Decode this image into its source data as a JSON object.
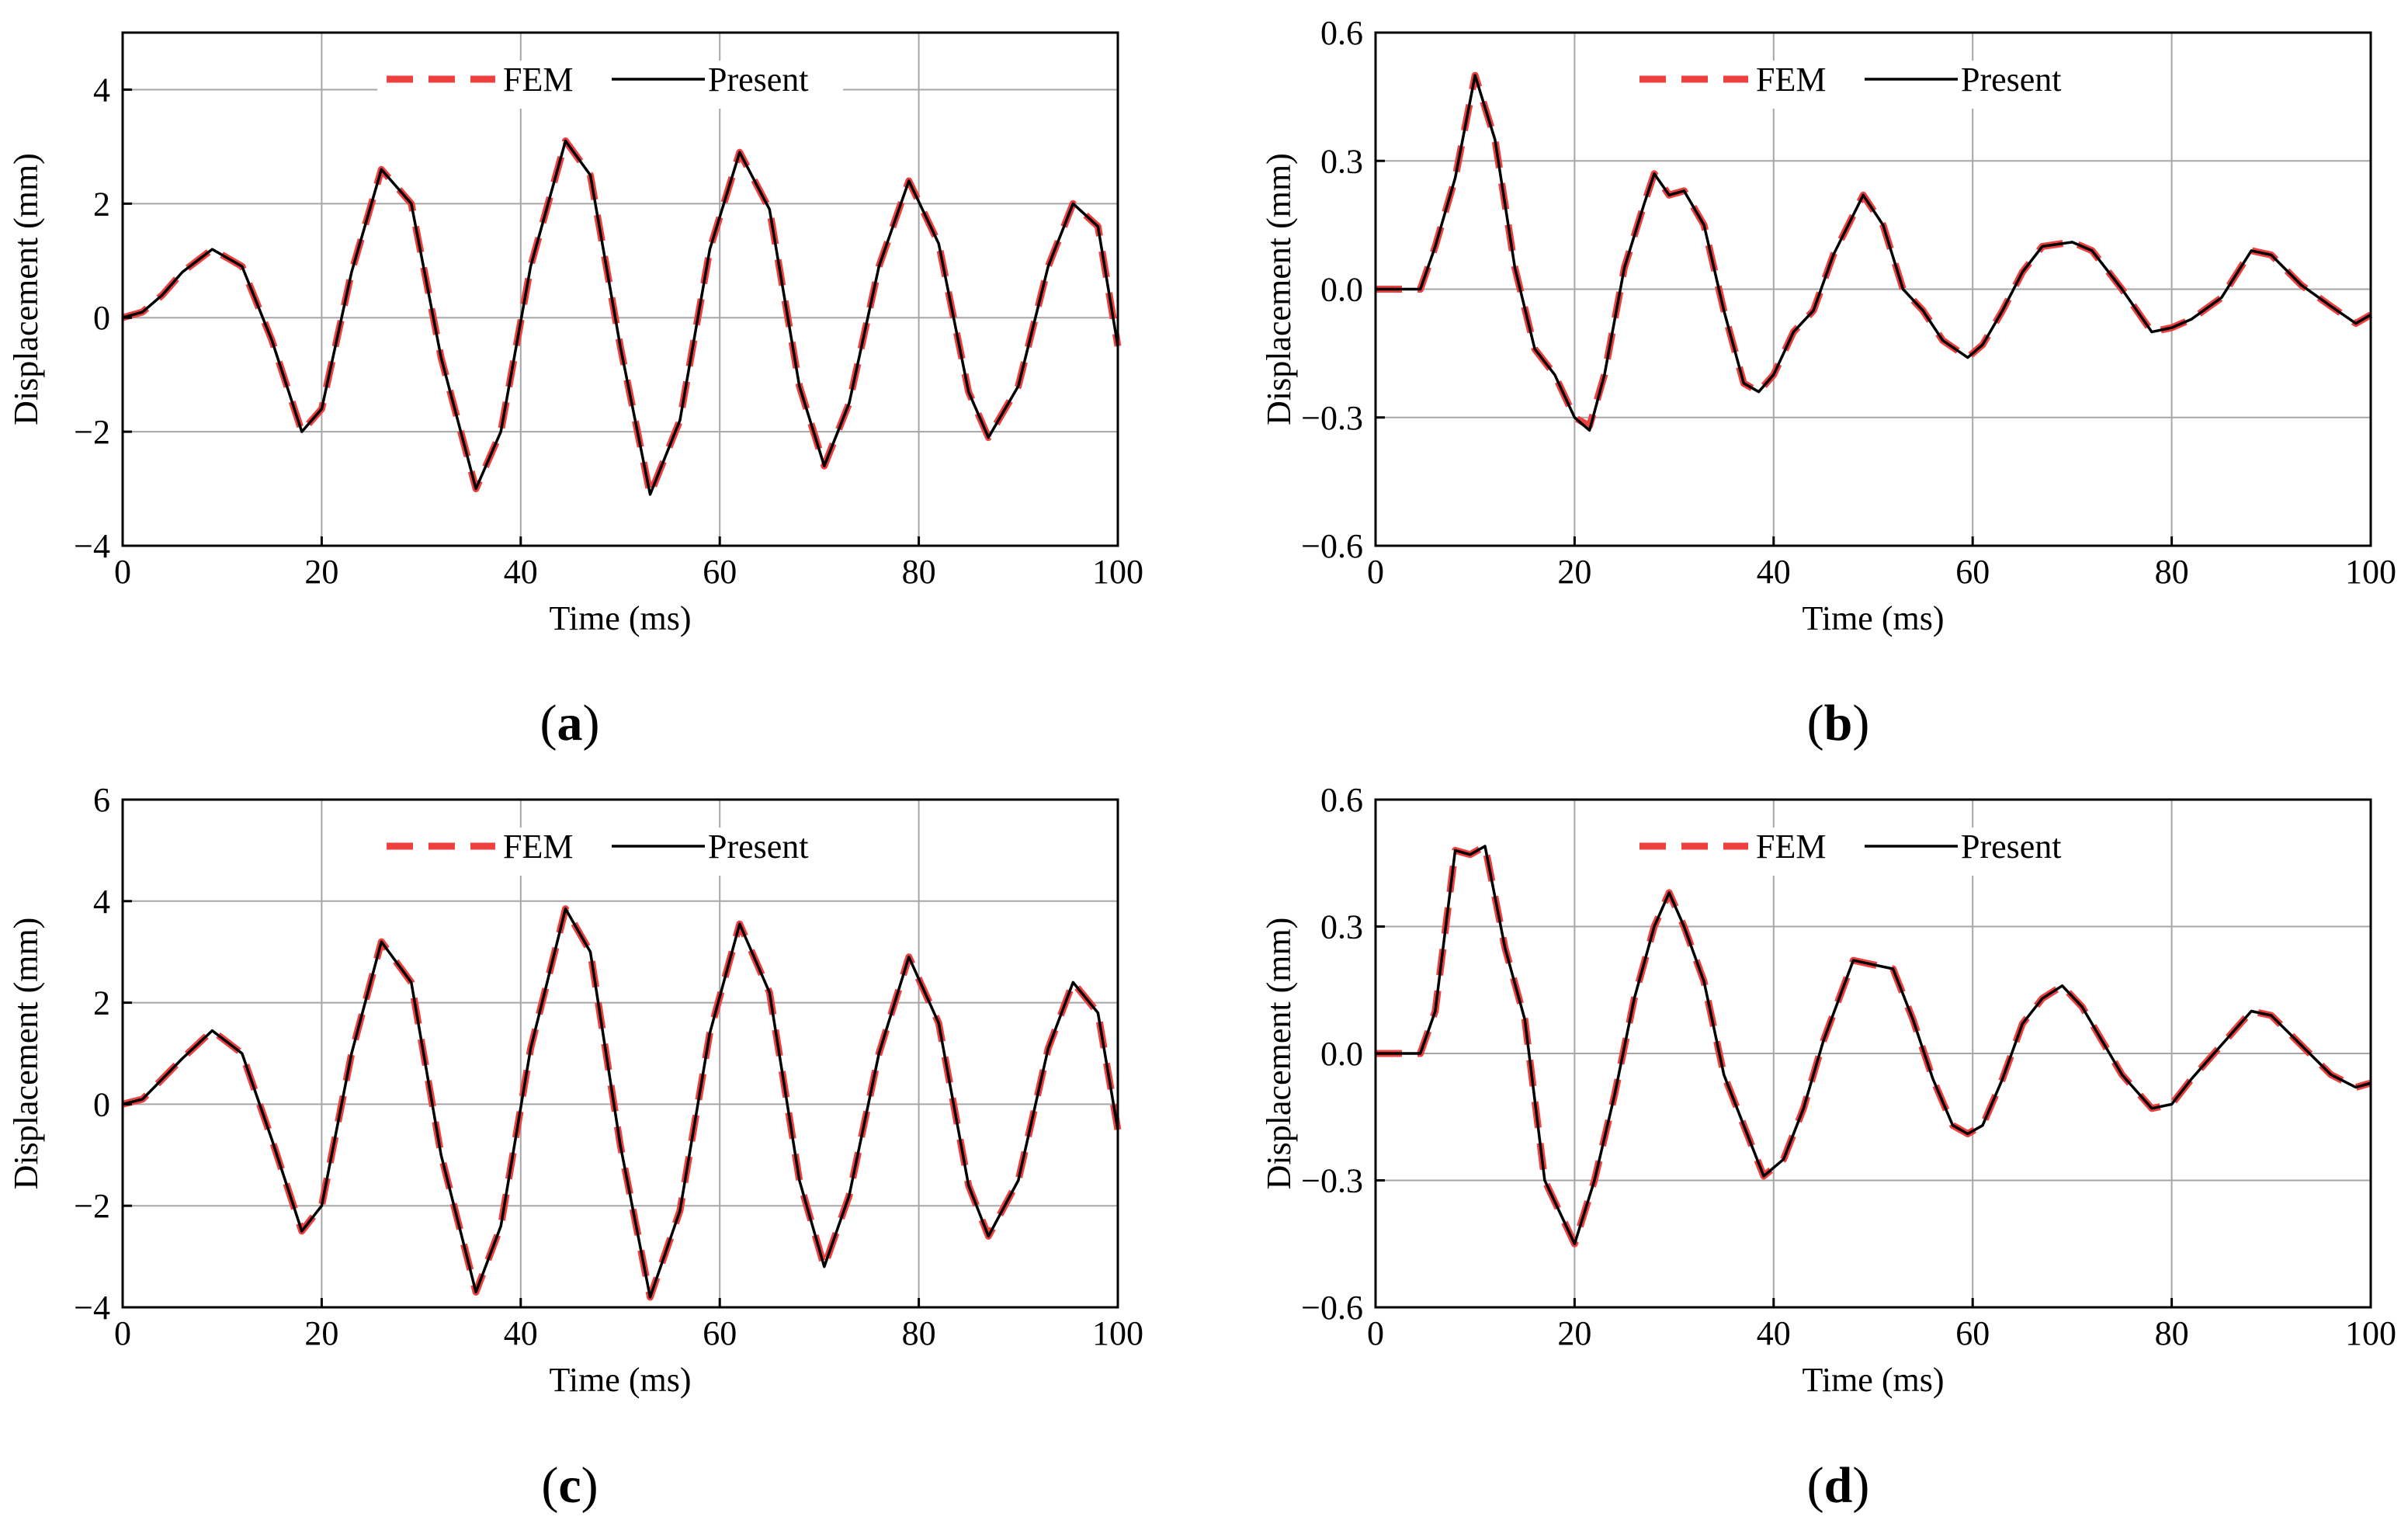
{
  "colors": {
    "fem": "#ef4040",
    "present": "#000000",
    "grid": "#a6a6a6",
    "axis": "#000000"
  },
  "chart_data": [
    {
      "type": "line",
      "panel_label": "(a)",
      "panel_open": "(",
      "panel_letter": "a",
      "panel_close": ")",
      "xlabel": "Time (ms)",
      "ylabel": "Displacement (mm)",
      "xlim": [
        0,
        100
      ],
      "ylim": [
        -4,
        5
      ],
      "xticks": [
        0,
        20,
        40,
        60,
        80,
        100
      ],
      "xtick_labels": [
        "0",
        "20",
        "40",
        "60",
        "80",
        "100"
      ],
      "yticks": [
        -4,
        -2,
        0,
        2,
        4
      ],
      "ytick_labels": [
        "−4",
        "−2",
        "0",
        "2",
        "4"
      ],
      "grid": true,
      "legend": [
        "FEM",
        "Present"
      ],
      "series": [
        {
          "name": "FEM",
          "style": "dashed",
          "x": [
            0,
            2,
            4,
            6,
            9,
            12,
            15,
            18,
            20,
            23,
            26,
            29,
            32,
            35.5,
            38,
            41,
            44.5,
            47,
            50,
            53,
            56,
            59,
            62,
            65,
            68,
            70.5,
            73,
            76,
            79,
            82,
            85,
            87,
            90,
            93,
            95.5,
            98,
            100
          ],
          "y": [
            0,
            0.1,
            0.4,
            0.8,
            1.2,
            0.9,
            -0.4,
            -2.0,
            -1.6,
            0.8,
            2.6,
            2.0,
            -0.7,
            -3.0,
            -2.0,
            0.9,
            3.1,
            2.5,
            -0.5,
            -3.1,
            -1.8,
            1.2,
            2.9,
            1.9,
            -1.2,
            -2.6,
            -1.5,
            0.9,
            2.4,
            1.3,
            -1.3,
            -2.1,
            -1.2,
            0.9,
            2.0,
            1.6,
            -0.5
          ]
        },
        {
          "name": "Present",
          "style": "solid",
          "x": [
            0,
            2,
            4,
            6,
            9,
            12,
            15,
            18,
            20,
            23,
            26,
            29,
            32,
            35.5,
            38,
            41,
            44.5,
            47,
            50,
            53,
            56,
            59,
            62,
            65,
            68,
            70.5,
            73,
            76,
            79,
            82,
            85,
            87,
            90,
            93,
            95.5,
            98,
            100
          ],
          "y": [
            0,
            0.1,
            0.4,
            0.8,
            1.2,
            0.9,
            -0.4,
            -2.0,
            -1.6,
            0.8,
            2.6,
            2.0,
            -0.7,
            -3.0,
            -2.0,
            0.9,
            3.1,
            2.5,
            -0.5,
            -3.1,
            -1.8,
            1.2,
            2.9,
            1.9,
            -1.2,
            -2.6,
            -1.5,
            0.9,
            2.4,
            1.3,
            -1.3,
            -2.1,
            -1.2,
            0.9,
            2.0,
            1.6,
            -0.5
          ]
        }
      ]
    },
    {
      "type": "line",
      "panel_label": "(b)",
      "panel_open": "(",
      "panel_letter": "b",
      "panel_close": ")",
      "xlabel": "Time (ms)",
      "ylabel": "Displacement (mm)",
      "xlim": [
        0,
        100
      ],
      "ylim": [
        -0.6,
        0.6
      ],
      "xticks": [
        0,
        20,
        40,
        60,
        80,
        100
      ],
      "xtick_labels": [
        "0",
        "20",
        "40",
        "60",
        "80",
        "100"
      ],
      "yticks": [
        -0.6,
        -0.3,
        0,
        0.3,
        0.6
      ],
      "ytick_labels": [
        "−0.6",
        "−0.3",
        "0.0",
        "0.3",
        "0.6"
      ],
      "grid": true,
      "legend": [
        "FEM",
        "Present"
      ],
      "series": [
        {
          "name": "FEM",
          "style": "dashed",
          "x": [
            0,
            4.5,
            6,
            8,
            10,
            12,
            14,
            16,
            18,
            20,
            21.5,
            23,
            25,
            27,
            28,
            29.5,
            31,
            33,
            35,
            37,
            38.5,
            40,
            42,
            44,
            46,
            49,
            51,
            53,
            55,
            57,
            59.5,
            61,
            63,
            65,
            67,
            70,
            72,
            75,
            78,
            80,
            82,
            85,
            88,
            90,
            93,
            96,
            98.5,
            100
          ],
          "y": [
            0,
            0,
            0.1,
            0.26,
            0.5,
            0.35,
            0.05,
            -0.14,
            -0.2,
            -0.3,
            -0.32,
            -0.2,
            0.05,
            0.2,
            0.27,
            0.22,
            0.23,
            0.15,
            -0.05,
            -0.22,
            -0.24,
            -0.2,
            -0.1,
            -0.05,
            0.08,
            0.22,
            0.15,
            0.0,
            -0.05,
            -0.12,
            -0.16,
            -0.13,
            -0.05,
            0.04,
            0.1,
            0.11,
            0.09,
            0.0,
            -0.1,
            -0.09,
            -0.07,
            -0.02,
            0.09,
            0.08,
            0.01,
            -0.04,
            -0.08,
            -0.06
          ]
        },
        {
          "name": "Present",
          "style": "solid",
          "x": [
            0,
            4.5,
            6,
            8,
            10,
            12,
            14,
            16,
            18,
            20,
            21.5,
            23,
            25,
            27,
            28,
            29.5,
            31,
            33,
            35,
            37,
            38.5,
            40,
            42,
            44,
            46,
            49,
            51,
            53,
            55,
            57,
            59.5,
            61,
            63,
            65,
            67,
            70,
            72,
            75,
            78,
            80,
            82,
            85,
            88,
            90,
            93,
            96,
            98.5,
            100
          ],
          "y": [
            0,
            0,
            0.1,
            0.26,
            0.5,
            0.35,
            0.05,
            -0.14,
            -0.2,
            -0.3,
            -0.33,
            -0.2,
            0.05,
            0.2,
            0.27,
            0.22,
            0.23,
            0.15,
            -0.05,
            -0.22,
            -0.24,
            -0.2,
            -0.1,
            -0.05,
            0.08,
            0.22,
            0.15,
            0.0,
            -0.05,
            -0.12,
            -0.16,
            -0.13,
            -0.05,
            0.04,
            0.1,
            0.11,
            0.09,
            0.0,
            -0.1,
            -0.09,
            -0.07,
            -0.02,
            0.09,
            0.08,
            0.01,
            -0.04,
            -0.08,
            -0.06
          ]
        }
      ]
    },
    {
      "type": "line",
      "panel_label": "(c)",
      "panel_open": "(",
      "panel_letter": "c",
      "panel_close": ")",
      "xlabel": "Time (ms)",
      "ylabel": "Displacement (mm)",
      "xlim": [
        0,
        100
      ],
      "ylim": [
        -4,
        6
      ],
      "xticks": [
        0,
        20,
        40,
        60,
        80,
        100
      ],
      "xtick_labels": [
        "0",
        "20",
        "40",
        "60",
        "80",
        "100"
      ],
      "yticks": [
        -4,
        -2,
        0,
        2,
        4,
        6
      ],
      "ytick_labels": [
        "−4",
        "−2",
        "0",
        "2",
        "4",
        "6"
      ],
      "grid": true,
      "legend": [
        "FEM",
        "Present"
      ],
      "series": [
        {
          "name": "FEM",
          "style": "dashed",
          "x": [
            0,
            2,
            4,
            6,
            9,
            12,
            15,
            18,
            20,
            23,
            26,
            29,
            32,
            35.5,
            38,
            41,
            44.5,
            47,
            50,
            53,
            56,
            59,
            62,
            65,
            68,
            70.5,
            73,
            76,
            79,
            82,
            85,
            87,
            90,
            93,
            95.5,
            98,
            100
          ],
          "y": [
            0,
            0.1,
            0.5,
            0.9,
            1.45,
            1.0,
            -0.7,
            -2.5,
            -2.0,
            1.0,
            3.2,
            2.4,
            -1.0,
            -3.7,
            -2.4,
            1.1,
            3.85,
            3.0,
            -0.8,
            -3.8,
            -2.1,
            1.4,
            3.55,
            2.2,
            -1.5,
            -3.2,
            -1.8,
            1.0,
            2.9,
            1.6,
            -1.6,
            -2.6,
            -1.5,
            1.1,
            2.4,
            1.8,
            -0.5
          ]
        },
        {
          "name": "Present",
          "style": "solid",
          "x": [
            0,
            2,
            4,
            6,
            9,
            12,
            15,
            18,
            20,
            23,
            26,
            29,
            32,
            35.5,
            38,
            41,
            44.5,
            47,
            50,
            53,
            56,
            59,
            62,
            65,
            68,
            70.5,
            73,
            76,
            79,
            82,
            85,
            87,
            90,
            93,
            95.5,
            98,
            100
          ],
          "y": [
            0,
            0.1,
            0.5,
            0.9,
            1.45,
            1.0,
            -0.7,
            -2.5,
            -2.0,
            1.0,
            3.2,
            2.4,
            -1.0,
            -3.7,
            -2.4,
            1.1,
            3.85,
            3.0,
            -0.8,
            -3.8,
            -2.1,
            1.4,
            3.55,
            2.2,
            -1.5,
            -3.2,
            -1.8,
            1.0,
            2.9,
            1.6,
            -1.6,
            -2.6,
            -1.5,
            1.1,
            2.4,
            1.8,
            -0.5
          ]
        }
      ]
    },
    {
      "type": "line",
      "panel_label": "(d)",
      "panel_open": "(",
      "panel_letter": "d",
      "panel_close": ")",
      "xlabel": "Time (ms)",
      "ylabel": "Displacement (mm)",
      "xlim": [
        0,
        100
      ],
      "ylim": [
        -0.6,
        0.6
      ],
      "xticks": [
        0,
        20,
        40,
        60,
        80,
        100
      ],
      "xtick_labels": [
        "0",
        "20",
        "40",
        "60",
        "80",
        "100"
      ],
      "yticks": [
        -0.6,
        -0.3,
        0,
        0.3,
        0.6
      ],
      "ytick_labels": [
        "−0.6",
        "−0.3",
        "0.0",
        "0.3",
        "0.6"
      ],
      "grid": true,
      "legend": [
        "FEM",
        "Present"
      ],
      "series": [
        {
          "name": "FEM",
          "style": "dashed",
          "x": [
            0,
            4.5,
            6,
            8,
            9.5,
            11,
            13,
            15,
            17,
            19,
            20,
            22,
            24,
            26,
            28,
            29.5,
            31,
            33,
            35,
            37,
            39,
            41,
            43,
            45,
            48,
            50,
            52,
            54,
            56,
            58,
            59.5,
            61,
            63,
            65,
            67,
            69,
            71,
            73,
            75,
            78,
            80,
            82,
            85,
            88,
            90,
            93,
            96,
            98.5,
            100
          ],
          "y": [
            0,
            0,
            0.1,
            0.48,
            0.47,
            0.49,
            0.25,
            0.08,
            -0.3,
            -0.4,
            -0.45,
            -0.3,
            -0.1,
            0.13,
            0.3,
            0.38,
            0.3,
            0.17,
            -0.05,
            -0.17,
            -0.29,
            -0.25,
            -0.13,
            0.03,
            0.22,
            0.21,
            0.2,
            0.08,
            -0.06,
            -0.17,
            -0.19,
            -0.17,
            -0.06,
            0.07,
            0.13,
            0.16,
            0.11,
            0.03,
            -0.05,
            -0.13,
            -0.12,
            -0.06,
            0.02,
            0.1,
            0.09,
            0.02,
            -0.05,
            -0.08,
            -0.07
          ]
        },
        {
          "name": "Present",
          "style": "solid",
          "x": [
            0,
            4.5,
            6,
            8,
            9.5,
            11,
            13,
            15,
            17,
            19,
            20,
            22,
            24,
            26,
            28,
            29.5,
            31,
            33,
            35,
            37,
            39,
            41,
            43,
            45,
            48,
            50,
            52,
            54,
            56,
            58,
            59.5,
            61,
            63,
            65,
            67,
            69,
            71,
            73,
            75,
            78,
            80,
            82,
            85,
            88,
            90,
            93,
            96,
            98.5,
            100
          ],
          "y": [
            0,
            0,
            0.1,
            0.48,
            0.47,
            0.49,
            0.25,
            0.08,
            -0.3,
            -0.4,
            -0.45,
            -0.3,
            -0.1,
            0.13,
            0.3,
            0.38,
            0.3,
            0.17,
            -0.05,
            -0.17,
            -0.29,
            -0.25,
            -0.13,
            0.03,
            0.22,
            0.21,
            0.2,
            0.08,
            -0.06,
            -0.17,
            -0.19,
            -0.17,
            -0.06,
            0.07,
            0.13,
            0.16,
            0.11,
            0.03,
            -0.05,
            -0.13,
            -0.12,
            -0.06,
            0.02,
            0.1,
            0.09,
            0.02,
            -0.05,
            -0.08,
            -0.07
          ]
        }
      ]
    }
  ]
}
